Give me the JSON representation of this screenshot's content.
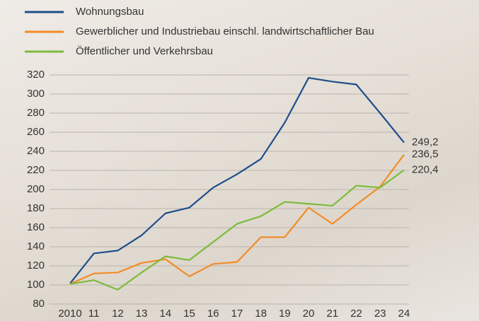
{
  "chart_data": {
    "type": "line",
    "categories": [
      "2010",
      "11",
      "12",
      "13",
      "14",
      "15",
      "16",
      "17",
      "18",
      "19",
      "20",
      "21",
      "22",
      "23",
      "24"
    ],
    "series": [
      {
        "name": "Wohnungsbau",
        "color": "#1f4e8c",
        "values": [
          101.5,
          133,
          136,
          152,
          175,
          181,
          202,
          216,
          232,
          270,
          317,
          313,
          310,
          280,
          249.2
        ],
        "value_labels": [
          null,
          null,
          null,
          null,
          null,
          null,
          null,
          null,
          null,
          null,
          null,
          null,
          null,
          null,
          "249,2"
        ]
      },
      {
        "name": "Gewerblicher und Industriebau einschl. landwirtschaftlicher Bau",
        "color": "#f28c28",
        "values": [
          101,
          112,
          113,
          123,
          127,
          109,
          122,
          124,
          150,
          150,
          181,
          164,
          184,
          203,
          236.5
        ],
        "value_labels": [
          null,
          null,
          null,
          null,
          null,
          null,
          null,
          null,
          null,
          null,
          null,
          null,
          null,
          null,
          "236,5"
        ]
      },
      {
        "name": "Öffentlicher und Verkehrsbau",
        "color": "#7dbb3c",
        "values": [
          101,
          105,
          95,
          113,
          130,
          126,
          145,
          164,
          172,
          187,
          185,
          183,
          204,
          202,
          220.4
        ],
        "value_labels": [
          null,
          null,
          null,
          null,
          null,
          null,
          null,
          null,
          null,
          null,
          null,
          null,
          null,
          null,
          "220,4"
        ]
      }
    ],
    "ylim": [
      80,
      320
    ],
    "yticks": [
      80,
      100,
      120,
      140,
      160,
      180,
      200,
      220,
      240,
      260,
      280,
      300,
      320
    ],
    "grid": true
  }
}
